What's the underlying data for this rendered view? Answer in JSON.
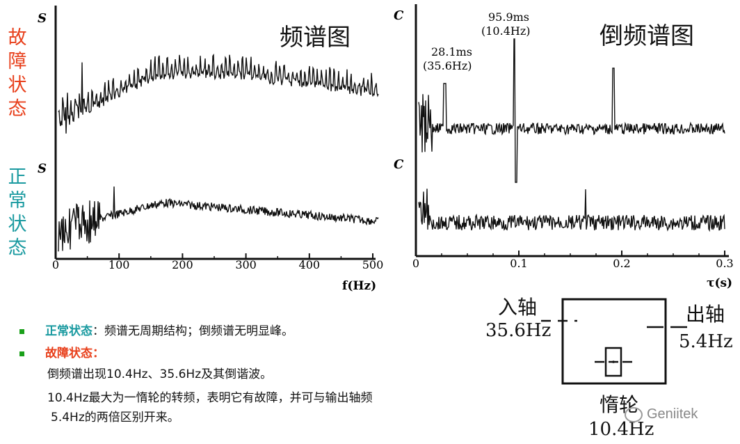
{
  "left_labels": {
    "fault": "故障状态",
    "normal": "正常状态",
    "fault_color": "#e8401c",
    "normal_color": "#1a9aa0"
  },
  "chart_data": [
    {
      "type": "line",
      "title": "频谱图",
      "xlabel": "f(Hz)",
      "ylabel": "S",
      "x_ticks": [
        "0",
        "100",
        "200",
        "300",
        "400",
        "500"
      ],
      "xlim": [
        0,
        500
      ],
      "series": [
        {
          "name": "故障状态",
          "y_axis_label": "S"
        },
        {
          "name": "正常状态",
          "y_axis_label": "S"
        }
      ]
    },
    {
      "type": "line",
      "title": "倒频谱图",
      "xlabel": "τ(s)",
      "ylabel": "C",
      "x_ticks": [
        "0",
        "0.1",
        "0.2",
        "0.3"
      ],
      "xlim": [
        0,
        0.3
      ],
      "annotations": [
        {
          "text": "28.1ms",
          "text2": "(35.6Hz)",
          "x": 0.0281
        },
        {
          "text": "95.9ms",
          "text2": "(10.4Hz)",
          "x": 0.0959
        }
      ],
      "series": [
        {
          "name": "故障状态",
          "y_axis_label": "C"
        },
        {
          "name": "正常状态",
          "y_axis_label": "C"
        }
      ]
    }
  ],
  "diagram": {
    "input_label": "入轴",
    "input_freq": "35.6Hz",
    "output_label": "出轴",
    "output_freq": "5.4Hz",
    "idler_label": "惰轮",
    "idler_freq": "10.4Hz"
  },
  "notes": {
    "normal_title": "正常状态",
    "normal_text": "：频谱无周期结构；倒频谱无明显峰。",
    "fault_title": "故障状态：",
    "line1": "倒频谱出现10.4Hz、35.6Hz及其倒谐波。",
    "line2": "10.4Hz最大为一惰轮的转频，表明它有故障，并可与输出轴频",
    "line3": "5.4Hz的两倍区别开来。",
    "normal_color": "#1a9aa0",
    "fault_color": "#e8401c"
  },
  "watermark": "Geniitek"
}
